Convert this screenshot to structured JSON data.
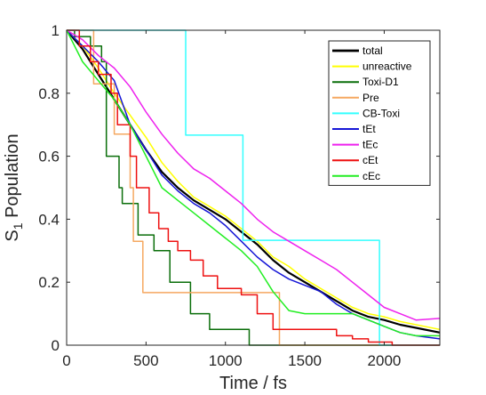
{
  "chart_data": {
    "type": "line",
    "title": "",
    "xlabel": "Time / fs",
    "ylabel_main": "S",
    "ylabel_sub": "1",
    "ylabel_rest": " Population",
    "xlim": [
      0,
      2350
    ],
    "ylim": [
      0,
      1
    ],
    "xticks": [
      0,
      500,
      1000,
      1500,
      2000
    ],
    "yticks": [
      0,
      0.2,
      0.4,
      0.6,
      0.8,
      1
    ],
    "xtick_labels": [
      "0",
      "500",
      "1000",
      "1500",
      "2000"
    ],
    "ytick_labels": [
      "0",
      "0.2",
      "0.4",
      "0.6",
      "0.8",
      "1"
    ],
    "grid": false,
    "legend_position": "top-right",
    "series": [
      {
        "name": "total",
        "color": "#000000",
        "width": 2.2,
        "step": false,
        "x": [
          0,
          50,
          100,
          150,
          200,
          250,
          300,
          400,
          500,
          600,
          700,
          800,
          900,
          1000,
          1100,
          1200,
          1300,
          1400,
          1500,
          1600,
          1700,
          1800,
          1900,
          2000,
          2100,
          2200,
          2350
        ],
        "y": [
          1.0,
          0.97,
          0.94,
          0.9,
          0.86,
          0.82,
          0.78,
          0.7,
          0.62,
          0.55,
          0.5,
          0.46,
          0.43,
          0.4,
          0.36,
          0.32,
          0.27,
          0.23,
          0.2,
          0.17,
          0.14,
          0.11,
          0.09,
          0.08,
          0.065,
          0.055,
          0.04
        ]
      },
      {
        "name": "unreactive",
        "color": "#ffff00",
        "width": 1.5,
        "step": false,
        "x": [
          0,
          100,
          200,
          300,
          400,
          500,
          600,
          700,
          800,
          900,
          1000,
          1100,
          1200,
          1300,
          1400,
          1500,
          1600,
          1700,
          1800,
          1900,
          2000,
          2100,
          2200,
          2350
        ],
        "y": [
          1.0,
          0.95,
          0.88,
          0.8,
          0.73,
          0.66,
          0.58,
          0.52,
          0.47,
          0.44,
          0.41,
          0.37,
          0.33,
          0.28,
          0.25,
          0.21,
          0.18,
          0.15,
          0.12,
          0.1,
          0.09,
          0.075,
          0.065,
          0.05
        ]
      },
      {
        "name": "Toxi-D1",
        "color": "#0a6e0a",
        "width": 1.5,
        "step": true,
        "x": [
          0,
          50,
          150,
          220,
          250,
          330,
          350,
          450,
          550,
          650,
          780,
          900,
          1000,
          1150,
          2350
        ],
        "y": [
          1.0,
          0.98,
          0.95,
          0.9,
          0.6,
          0.5,
          0.45,
          0.35,
          0.3,
          0.2,
          0.1,
          0.05,
          0.05,
          0.0,
          0.0
        ]
      },
      {
        "name": "Pre",
        "color": "#f5a860",
        "width": 1.5,
        "step": true,
        "x": [
          0,
          150,
          170,
          300,
          400,
          420,
          480,
          900,
          1340,
          2350
        ],
        "y": [
          1.0,
          1.0,
          0.83,
          0.67,
          0.5,
          0.33,
          0.167,
          0.167,
          0.0,
          0.0
        ]
      },
      {
        "name": "CB-Toxi",
        "color": "#33ffff",
        "width": 1.5,
        "step": true,
        "x": [
          0,
          750,
          1110,
          1130,
          1950,
          1970,
          2350
        ],
        "y": [
          1.0,
          0.667,
          0.333,
          0.333,
          0.333,
          0.0,
          0.0
        ]
      },
      {
        "name": "tEt",
        "color": "#1515d6",
        "width": 1.5,
        "step": false,
        "x": [
          0,
          100,
          200,
          300,
          400,
          500,
          600,
          700,
          800,
          900,
          1000,
          1100,
          1200,
          1300,
          1400,
          1500,
          1600,
          1700,
          1800,
          1900,
          2000,
          2100,
          2200,
          2350
        ],
        "y": [
          1.0,
          0.95,
          0.9,
          0.84,
          0.7,
          0.62,
          0.54,
          0.49,
          0.45,
          0.42,
          0.38,
          0.33,
          0.28,
          0.24,
          0.21,
          0.19,
          0.17,
          0.13,
          0.1,
          0.08,
          0.06,
          0.04,
          0.03,
          0.02
        ]
      },
      {
        "name": "tEc",
        "color": "#ee22ee",
        "width": 1.5,
        "step": false,
        "x": [
          0,
          100,
          200,
          300,
          400,
          500,
          600,
          700,
          800,
          900,
          1000,
          1100,
          1200,
          1300,
          1400,
          1500,
          1600,
          1700,
          1800,
          1900,
          2000,
          2100,
          2200,
          2350
        ],
        "y": [
          1.0,
          0.97,
          0.92,
          0.88,
          0.82,
          0.74,
          0.67,
          0.61,
          0.56,
          0.53,
          0.49,
          0.45,
          0.4,
          0.36,
          0.33,
          0.3,
          0.27,
          0.24,
          0.2,
          0.16,
          0.12,
          0.1,
          0.08,
          0.085
        ]
      },
      {
        "name": "cEt",
        "color": "#ee1111",
        "width": 1.5,
        "step": true,
        "x": [
          0,
          80,
          150,
          200,
          280,
          320,
          400,
          440,
          520,
          580,
          640,
          700,
          780,
          860,
          950,
          1100,
          1200,
          1300,
          1400,
          1500,
          1600,
          1700,
          1800,
          1900,
          2050,
          2350
        ],
        "y": [
          1.0,
          0.95,
          0.9,
          0.86,
          0.8,
          0.7,
          0.6,
          0.5,
          0.42,
          0.37,
          0.33,
          0.3,
          0.27,
          0.22,
          0.18,
          0.16,
          0.1,
          0.05,
          0.05,
          0.05,
          0.05,
          0.03,
          0.02,
          0.01,
          0.0,
          0.0
        ]
      },
      {
        "name": "cEc",
        "color": "#22ee22",
        "width": 1.5,
        "step": false,
        "x": [
          0,
          100,
          200,
          300,
          400,
          500,
          600,
          700,
          800,
          900,
          1000,
          1100,
          1200,
          1300,
          1400,
          1500,
          1600,
          1700,
          1800,
          1900,
          2000,
          2100,
          2200,
          2350
        ],
        "y": [
          1.0,
          0.9,
          0.84,
          0.78,
          0.7,
          0.6,
          0.5,
          0.46,
          0.42,
          0.38,
          0.34,
          0.3,
          0.25,
          0.17,
          0.11,
          0.1,
          0.1,
          0.1,
          0.1,
          0.08,
          0.06,
          0.04,
          0.03,
          0.03
        ]
      }
    ]
  }
}
